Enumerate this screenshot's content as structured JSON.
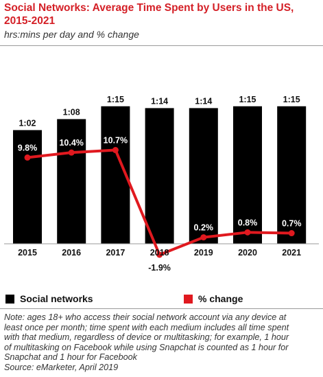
{
  "header": {
    "title_line1": "Social Networks: Average Time Spent by Users in the US,",
    "title_line2": "2015-2021",
    "subtitle": "hrs:mins per day and % change"
  },
  "legend": {
    "bars_label": "Social networks",
    "line_label": "% change"
  },
  "note": {
    "lines": [
      "Note: ages 18+ who access their social network account via any device at",
      "least once per month; time spent with each medium includes all time spent",
      "with that medium, regardless of device or multitasking; for example, 1 hour",
      "of multitasking on Facebook while using Snapchat is counted as 1 hour for",
      "Snapchat and 1 hour for Facebook",
      "Source: eMarketer, April 2019"
    ]
  },
  "colors": {
    "bar": "#000000",
    "line": "#e0191f",
    "title": "#d41f26"
  },
  "chart_data": {
    "type": "bar",
    "title": "Social Networks: Average Time Spent by Users in the US, 2015-2021",
    "subtitle": "hrs:mins per day and % change",
    "categories": [
      "2015",
      "2016",
      "2017",
      "2018",
      "2019",
      "2020",
      "2021"
    ],
    "series": [
      {
        "name": "Social networks",
        "type": "bar",
        "values": [
          "1:02",
          "1:08",
          "1:15",
          "1:14",
          "1:14",
          "1:15",
          "1:15"
        ],
        "minutes": [
          62,
          68,
          75,
          74,
          74,
          75,
          75
        ]
      },
      {
        "name": "% change",
        "type": "line",
        "values": [
          9.8,
          10.4,
          10.7,
          -1.9,
          0.2,
          0.8,
          0.7
        ],
        "labels": [
          "9.8%",
          "10.4%",
          "10.7%",
          "-1.9%",
          "0.2%",
          "0.8%",
          "0.7%"
        ]
      }
    ],
    "legend_position": "bottom",
    "grid": false
  }
}
